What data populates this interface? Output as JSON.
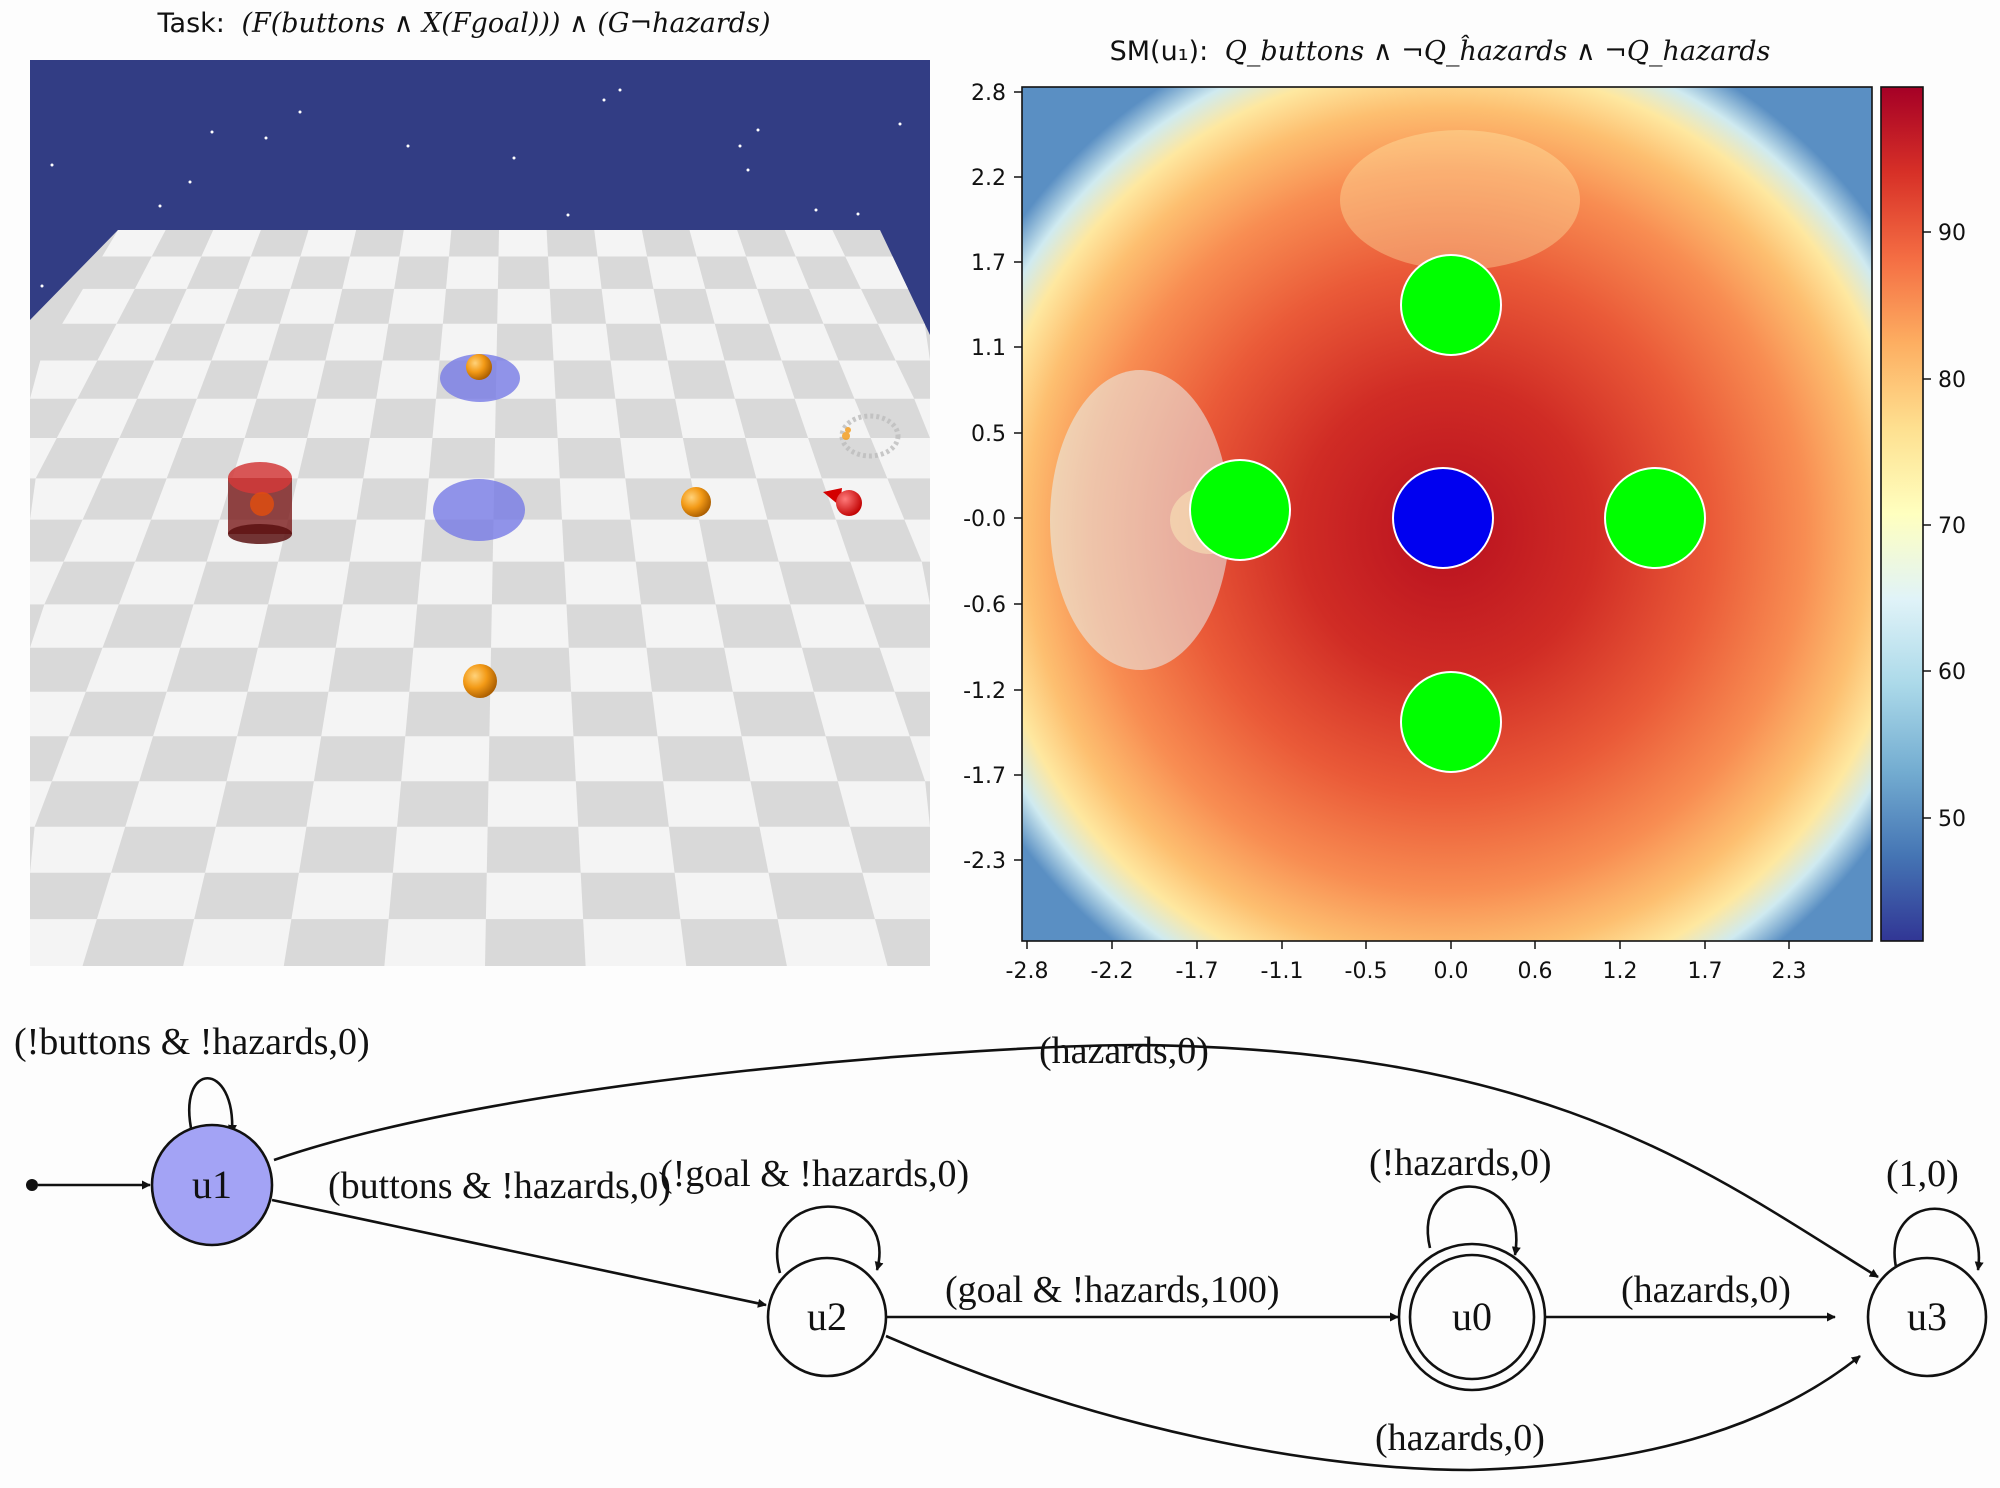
{
  "left_panel": {
    "title_prefix": "Task:",
    "title_formula": "(F(buttons ∧ X(Fgoal))) ∧ (G¬hazards)"
  },
  "heatmap": {
    "title_prefix": "SM(u₁):",
    "title_formula": "Q_buttons ∧ ¬Q_ĥazards ∧ ¬Q_hazards",
    "y_ticks": [
      "2.8",
      "2.2",
      "1.7",
      "1.1",
      "0.5",
      "-0.0",
      "-0.6",
      "-1.2",
      "-1.7",
      "-2.3"
    ],
    "x_ticks": [
      "-2.8",
      "-2.2",
      "-1.7",
      "-1.1",
      "-0.5",
      "0.0",
      "0.6",
      "1.2",
      "1.7",
      "2.3"
    ],
    "colorbar_ticks": [
      "90",
      "80",
      "70",
      "60",
      "50"
    ],
    "colormap": [
      "#313695",
      "#4575b4",
      "#74add1",
      "#abd9e9",
      "#e0f3f8",
      "#ffffbf",
      "#fee090",
      "#fdae61",
      "#f46d43",
      "#d73027",
      "#a50026"
    ],
    "button_color": "#00ff00",
    "goal_color": "#0000ff"
  },
  "reward_machine": {
    "initial_node": "u1",
    "nodes": [
      {
        "id": "u1",
        "label": "u1",
        "fill": "#a3a3f5",
        "accepting": false
      },
      {
        "id": "u2",
        "label": "u2",
        "fill": "#fdfdfd",
        "accepting": false
      },
      {
        "id": "u0",
        "label": "u0",
        "fill": "#fdfdfd",
        "accepting": true
      },
      {
        "id": "u3",
        "label": "u3",
        "fill": "#fdfdfd",
        "accepting": false
      }
    ],
    "edges": {
      "u1_u1": "(!buttons & !hazards,0)",
      "u1_u3": "(hazards,0)",
      "u1_u2": "(buttons & !hazards,0)",
      "u2_u2": "(!goal & !hazards,0)",
      "u0_u0": "(!hazards,0)",
      "u3_u3": "(1,0)",
      "u2_u0": "(goal & !hazards,100)",
      "u0_u3": "(hazards,0)",
      "u2_u3": "(hazards,0)"
    }
  }
}
